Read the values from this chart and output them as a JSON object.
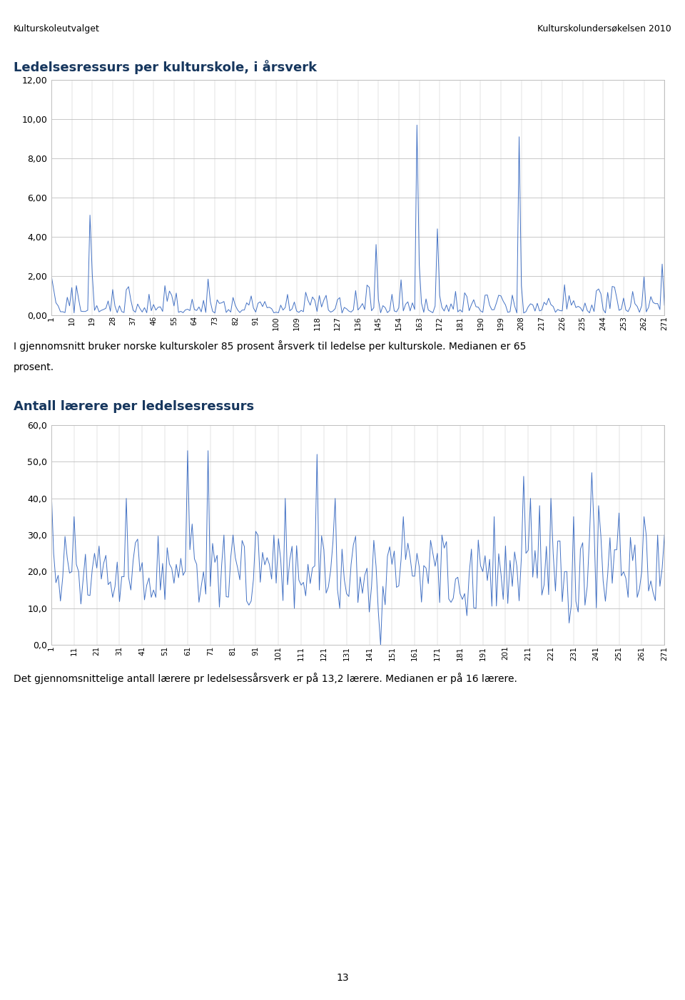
{
  "header_left": "Kulturskoleutvalget",
  "header_right": "Kulturskolundersøkelsen 2010",
  "chart1_title": "Ledelsesressurs per kulturskole, i årsverk",
  "chart1_yticks": [
    0.0,
    2.0,
    4.0,
    6.0,
    8.0,
    10.0,
    12.0
  ],
  "chart1_ylim": [
    0,
    12.0
  ],
  "chart1_xtick_labels": [
    "1",
    "10",
    "19",
    "28",
    "37",
    "46",
    "55",
    "64",
    "73",
    "82",
    "91",
    "100",
    "109",
    "118",
    "127",
    "136",
    "145",
    "154",
    "163",
    "172",
    "181",
    "190",
    "199",
    "208",
    "217",
    "226",
    "235",
    "244",
    "253",
    "262",
    "271"
  ],
  "chart1_text1": "I gjennomsnitt bruker norske kulturskoler 85 prosent årsverk til ledelse per kulturskole. Medianen er 65",
  "chart1_text2": "prosent.",
  "chart2_title": "Antall lærere per ledelsesressurs",
  "chart2_yticks": [
    0.0,
    10.0,
    20.0,
    30.0,
    40.0,
    50.0,
    60.0
  ],
  "chart2_ylim": [
    0,
    60.0
  ],
  "chart2_xtick_labels": [
    "1",
    "11",
    "21",
    "31",
    "41",
    "51",
    "61",
    "71",
    "81",
    "91",
    "101",
    "111",
    "121",
    "131",
    "141",
    "151",
    "161",
    "171",
    "181",
    "191",
    "201",
    "211",
    "221",
    "231",
    "241",
    "251",
    "261",
    "271"
  ],
  "chart2_text": "Det gjennomsnittelige antall lærere pr ledelsessårsverk er på 13,2 lærere. Medianen er på 16 lærere.",
  "line_color": "#4472C4",
  "bg_color": "#FFFFFF",
  "chart_bg": "#FFFFFF",
  "grid_color": "#BFBFBF",
  "title_color": "#17375E",
  "page_number": "13"
}
